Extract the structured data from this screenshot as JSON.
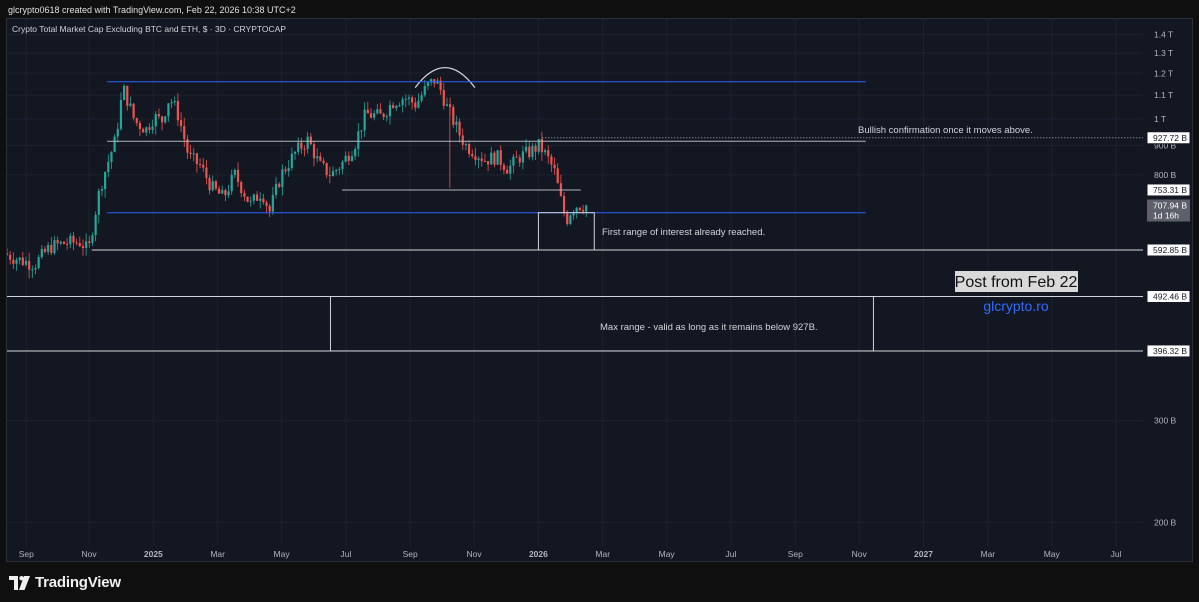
{
  "header": {
    "attribution": "glcrypto0618 created with TradingView.com, Feb 22, 2026 10:38 UTC+2"
  },
  "brand": {
    "name": "TradingView"
  },
  "chart_data": {
    "type": "candlestick",
    "title": "Crypto Total Market Cap Excluding BTC and ETH, $ · 3D · CRYPTOCAP",
    "y_scale": "log",
    "ylim": [
      182,
      1490
    ],
    "y_ticks": [
      {
        "v": 1400,
        "label": "1.4 T"
      },
      {
        "v": 1300,
        "label": "1.3 T"
      },
      {
        "v": 1200,
        "label": "1.2 T"
      },
      {
        "v": 1100,
        "label": "1.1 T"
      },
      {
        "v": 1000,
        "label": "1 T"
      },
      {
        "v": 900,
        "label": "900 B"
      },
      {
        "v": 800,
        "label": "800 B"
      },
      {
        "v": 300,
        "label": "300 B"
      },
      {
        "v": 200,
        "label": "200 B"
      }
    ],
    "x_ticks": [
      {
        "t": 2024.67,
        "label": "Sep"
      },
      {
        "t": 2024.833,
        "label": "Nov"
      },
      {
        "t": 2025.0,
        "label": "2025",
        "bold": true
      },
      {
        "t": 2025.167,
        "label": "Mar"
      },
      {
        "t": 2025.333,
        "label": "May"
      },
      {
        "t": 2025.5,
        "label": "Jul"
      },
      {
        "t": 2025.667,
        "label": "Sep"
      },
      {
        "t": 2025.833,
        "label": "Nov"
      },
      {
        "t": 2026.0,
        "label": "2026",
        "bold": true
      },
      {
        "t": 2026.167,
        "label": "Mar"
      },
      {
        "t": 2026.333,
        "label": "May"
      },
      {
        "t": 2026.5,
        "label": "Jul"
      },
      {
        "t": 2026.667,
        "label": "Sep"
      },
      {
        "t": 2026.833,
        "label": "Nov"
      },
      {
        "t": 2027.0,
        "label": "2027",
        "bold": true
      },
      {
        "t": 2027.167,
        "label": "Mar"
      },
      {
        "t": 2027.333,
        "label": "May"
      },
      {
        "t": 2027.5,
        "label": "Jul"
      }
    ],
    "xlim": [
      2024.62,
      2027.57
    ],
    "price_path": [
      [
        2024.62,
        585
      ],
      [
        2024.66,
        570
      ],
      [
        2024.7,
        560
      ],
      [
        2024.74,
        600
      ],
      [
        2024.78,
        610
      ],
      [
        2024.82,
        612
      ],
      [
        2024.84,
        590
      ],
      [
        2024.87,
        760
      ],
      [
        2024.895,
        860
      ],
      [
        2024.91,
        920
      ],
      [
        2024.93,
        1130
      ],
      [
        2024.96,
        990
      ],
      [
        2024.99,
        960
      ],
      [
        2025.01,
        1010
      ],
      [
        2025.03,
        990
      ],
      [
        2025.05,
        1090
      ],
      [
        2025.07,
        1030
      ],
      [
        2025.1,
        860
      ],
      [
        2025.13,
        830
      ],
      [
        2025.16,
        760
      ],
      [
        2025.19,
        730
      ],
      [
        2025.22,
        800
      ],
      [
        2025.26,
        710
      ],
      [
        2025.29,
        750
      ],
      [
        2025.31,
        690
      ],
      [
        2025.34,
        800
      ],
      [
        2025.38,
        880
      ],
      [
        2025.41,
        920
      ],
      [
        2025.44,
        830
      ],
      [
        2025.47,
        800
      ],
      [
        2025.5,
        840
      ],
      [
        2025.53,
        900
      ],
      [
        2025.56,
        1020
      ],
      [
        2025.6,
        1010
      ],
      [
        2025.63,
        1070
      ],
      [
        2025.66,
        1090
      ],
      [
        2025.69,
        1060
      ],
      [
        2025.72,
        1140
      ],
      [
        2025.74,
        1170
      ],
      [
        2025.755,
        1120
      ],
      [
        2025.77,
        1050
      ],
      [
        2025.8,
        950
      ],
      [
        2025.82,
        900
      ],
      [
        2025.84,
        880
      ],
      [
        2025.87,
        850
      ],
      [
        2025.9,
        860
      ],
      [
        2025.93,
        820
      ],
      [
        2025.96,
        860
      ],
      [
        2025.99,
        880
      ],
      [
        2026.01,
        900
      ],
      [
        2026.03,
        860
      ],
      [
        2026.05,
        810
      ],
      [
        2026.065,
        730
      ],
      [
        2026.08,
        665
      ],
      [
        2026.095,
        700
      ],
      [
        2026.11,
        710
      ],
      [
        2026.125,
        708
      ]
    ],
    "horizontal_levels": [
      {
        "name": "range-top",
        "v": 1160,
        "t1": 2024.88,
        "t2": 2026.85,
        "color": "#2962ff"
      },
      {
        "name": "range-mid",
        "v": 915,
        "t1": 2024.88,
        "t2": 2026.85,
        "color": "#b2b5be"
      },
      {
        "name": "range-bottom",
        "v": 688,
        "t1": 2024.88,
        "t2": 2026.85,
        "color": "#2962ff"
      },
      {
        "name": "support-753",
        "v": 753,
        "t1": 2025.49,
        "t2": 2026.11,
        "color": "#b2b5be"
      },
      {
        "name": "bullish-dotted",
        "v": 927.72,
        "t1": 2026.01,
        "t2": 2027.57,
        "color": "#b2b5be",
        "dotted": true
      },
      {
        "name": "level-592",
        "v": 592.85,
        "t1": 2024.84,
        "t2": 2027.57,
        "color": "#d1d4dc"
      },
      {
        "name": "level-492",
        "v": 492.46,
        "t1": 2024.62,
        "t2": 2027.57,
        "color": "#d1d4dc"
      },
      {
        "name": "level-396",
        "v": 396.32,
        "t1": 2024.62,
        "t2": 2027.57,
        "color": "#d1d4dc"
      }
    ],
    "boxes": [
      {
        "name": "first-range-box",
        "t1": 2026.0,
        "t2": 2026.145,
        "v1": 688,
        "v2": 592.85
      },
      {
        "name": "max-range-box",
        "t1": 2025.46,
        "t2": 2026.87,
        "v1": 492.46,
        "v2": 396.32
      }
    ],
    "arc": {
      "t1": 2025.68,
      "t2": 2025.835,
      "v": 1170
    },
    "annotations": [
      {
        "name": "bullish-note",
        "text": "Bullish confirmation once it moves above.",
        "t": 2026.83,
        "v": 960
      },
      {
        "name": "first-range-note",
        "text": "First range of interest already reached.",
        "t": 2026.165,
        "v": 640
      },
      {
        "name": "max-range-note",
        "text": "Max range - valid as long as it remains below 927B.",
        "t": 2026.16,
        "v": 438
      }
    ],
    "price_labels": [
      {
        "v": 927.72,
        "label": "927.72 B",
        "style": "outline"
      },
      {
        "v": 753.31,
        "label": "753.31 B",
        "style": "outline"
      },
      {
        "v": 707.94,
        "label": "707.94 B",
        "sub": "1d 16h",
        "style": "current"
      },
      {
        "v": 592.85,
        "label": "592.85 B",
        "style": "outline"
      },
      {
        "v": 492.46,
        "label": "492.46 B",
        "style": "outline"
      },
      {
        "v": 396.32,
        "label": "396.32 B",
        "style": "outline"
      }
    ],
    "colors": {
      "up": "#26a69a",
      "down": "#ef5350",
      "bg": "#131722",
      "grid": "#1e222d",
      "axis_text": "#b2b5be"
    }
  },
  "watermark": {
    "post": "Post from Feb 22",
    "site": "glcrypto.ro"
  }
}
